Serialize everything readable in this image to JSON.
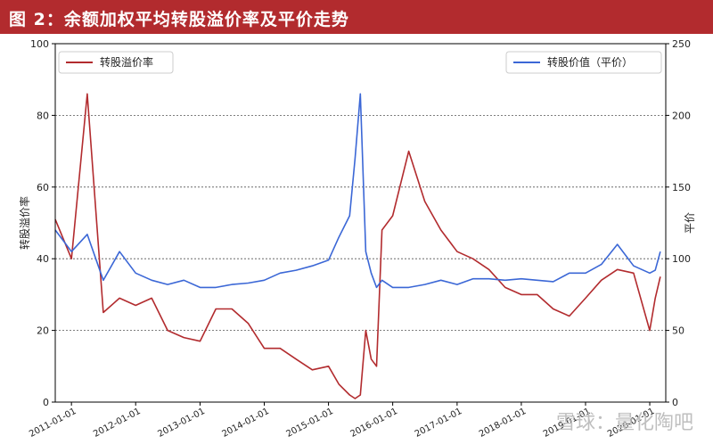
{
  "figure_title": "图 2：余额加权平均转股溢价率及平价走势",
  "watermark": "雪球：量化陶吧",
  "colors": {
    "title_bg": "#b22b2e",
    "premium_line": "#b22b2e",
    "parity_line": "#3b67d6",
    "grid": "#555555"
  },
  "chart_data": {
    "type": "line",
    "title": "",
    "x": [
      "2010-10-01",
      "2011-01-01",
      "2011-04-01",
      "2011-07-01",
      "2011-10-01",
      "2012-01-01",
      "2012-04-01",
      "2012-07-01",
      "2012-10-01",
      "2013-01-01",
      "2013-04-01",
      "2013-07-01",
      "2013-10-01",
      "2014-01-01",
      "2014-04-01",
      "2014-07-01",
      "2014-10-01",
      "2015-01-01",
      "2015-03-01",
      "2015-05-01",
      "2015-06-01",
      "2015-07-01",
      "2015-08-01",
      "2015-09-01",
      "2015-10-01",
      "2015-11-01",
      "2016-01-01",
      "2016-04-01",
      "2016-07-01",
      "2016-10-01",
      "2017-01-01",
      "2017-04-01",
      "2017-07-01",
      "2017-10-01",
      "2018-01-01",
      "2018-04-01",
      "2018-07-01",
      "2018-10-01",
      "2019-01-01",
      "2019-04-01",
      "2019-07-01",
      "2019-10-01",
      "2020-01-01",
      "2020-02-01",
      "2020-03-01"
    ],
    "series": [
      {
        "name": "转股溢价率",
        "axis": "left",
        "values": [
          51,
          40,
          86,
          25,
          29,
          27,
          29,
          20,
          18,
          17,
          26,
          26,
          22,
          15,
          15,
          12,
          9,
          10,
          5,
          2,
          1,
          2,
          20,
          12,
          10,
          48,
          52,
          70,
          56,
          48,
          42,
          40,
          37,
          32,
          30,
          30,
          26,
          24,
          29,
          34,
          37,
          36,
          20,
          29,
          35
        ]
      },
      {
        "name": "转股价值（平价）",
        "axis": "right",
        "values": [
          120,
          105,
          117,
          85,
          105,
          90,
          85,
          82,
          85,
          80,
          80,
          82,
          83,
          85,
          90,
          92,
          95,
          99,
          115,
          130,
          170,
          215,
          105,
          90,
          80,
          85,
          80,
          80,
          82,
          85,
          82,
          86,
          86,
          85,
          86,
          85,
          84,
          90,
          90,
          96,
          110,
          95,
          90,
          92,
          105
        ]
      }
    ],
    "xticks": [
      "2011-01-01",
      "2012-01-01",
      "2013-01-01",
      "2014-01-01",
      "2015-01-01",
      "2016-01-01",
      "2017-01-01",
      "2018-01-01",
      "2019-01-01",
      "2020-01-01"
    ],
    "ylabel_left": "转股溢价率",
    "ylabel_right": "平价",
    "ylim_left": [
      0,
      100
    ],
    "ylim_right": [
      0,
      250
    ],
    "yticks_left": [
      0,
      20,
      40,
      60,
      80,
      100
    ],
    "yticks_right": [
      0,
      50,
      100,
      150,
      200,
      250
    ],
    "grid": "horizontal-dashed",
    "legend_left": "top-left",
    "legend_right": "top-right"
  }
}
